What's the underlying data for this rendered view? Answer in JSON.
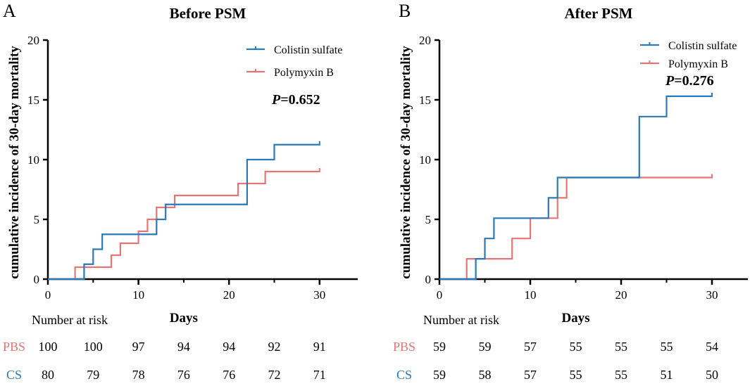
{
  "colors": {
    "cs": "#2a7ab8",
    "pbs": "#e87474",
    "axis": "#000000"
  },
  "chart_data": [
    {
      "panel_letter": "A",
      "type": "line",
      "step": true,
      "title": "Before PSM",
      "xlabel": "Days",
      "ylabel": "cumulative incidence of 30-day mortality",
      "xlim": [
        0,
        35
      ],
      "ylim": [
        0,
        20
      ],
      "xticks": [
        0,
        10,
        20,
        30
      ],
      "yticks": [
        0,
        5,
        10,
        15,
        20
      ],
      "p_value": {
        "label": "P",
        "text": "=0.652"
      },
      "series": [
        {
          "name": "Colistin sulfate",
          "key": "cs",
          "x": [
            0,
            4,
            5,
            6,
            12,
            13,
            22,
            25,
            30
          ],
          "y": [
            0,
            1.25,
            2.5,
            3.75,
            5,
            6.25,
            10,
            11.25,
            11.25
          ]
        },
        {
          "name": "Polymyxin B",
          "key": "pbs",
          "x": [
            0,
            3,
            7,
            8,
            10,
            11,
            12,
            14,
            21,
            24,
            30
          ],
          "y": [
            0,
            1,
            2,
            3,
            4,
            5,
            6,
            7,
            8,
            9,
            9
          ]
        }
      ],
      "risk_table": {
        "title": "Number at risk",
        "rows": [
          {
            "label": "PBS",
            "key": "pbs",
            "values": [
              "100",
              "100",
              "97",
              "94",
              "94",
              "92",
              "91"
            ]
          },
          {
            "label": "CS",
            "key": "cs",
            "values": [
              "80",
              "79",
              "78",
              "76",
              "76",
              "72",
              "71"
            ]
          }
        ]
      }
    },
    {
      "panel_letter": "B",
      "type": "line",
      "step": true,
      "title": "After PSM",
      "xlabel": "Days",
      "ylabel": "cumulative incidence of 30-day mortality",
      "xlim": [
        0,
        35
      ],
      "ylim": [
        0,
        20
      ],
      "xticks": [
        0,
        10,
        20,
        30
      ],
      "yticks": [
        0,
        5,
        10,
        15,
        20
      ],
      "p_value": {
        "label": "P",
        "text": "=0.276"
      },
      "series": [
        {
          "name": "Colistin sulfate",
          "key": "cs",
          "x": [
            0,
            4,
            5,
            6,
            12,
            13,
            22,
            25,
            30
          ],
          "y": [
            0,
            1.7,
            3.4,
            5.1,
            6.8,
            8.5,
            13.6,
            15.3,
            15.3
          ]
        },
        {
          "name": "Polymyxin B",
          "key": "pbs",
          "x": [
            0,
            3,
            8,
            10,
            13,
            14,
            30
          ],
          "y": [
            0,
            1.7,
            3.4,
            5.1,
            6.8,
            8.5,
            8.5
          ]
        }
      ],
      "risk_table": {
        "title": "Number at risk",
        "rows": [
          {
            "label": "PBS",
            "key": "pbs",
            "values": [
              "59",
              "59",
              "57",
              "55",
              "55",
              "55",
              "54"
            ]
          },
          {
            "label": "CS",
            "key": "cs",
            "values": [
              "59",
              "58",
              "57",
              "55",
              "55",
              "51",
              "50"
            ]
          }
        ]
      }
    }
  ]
}
